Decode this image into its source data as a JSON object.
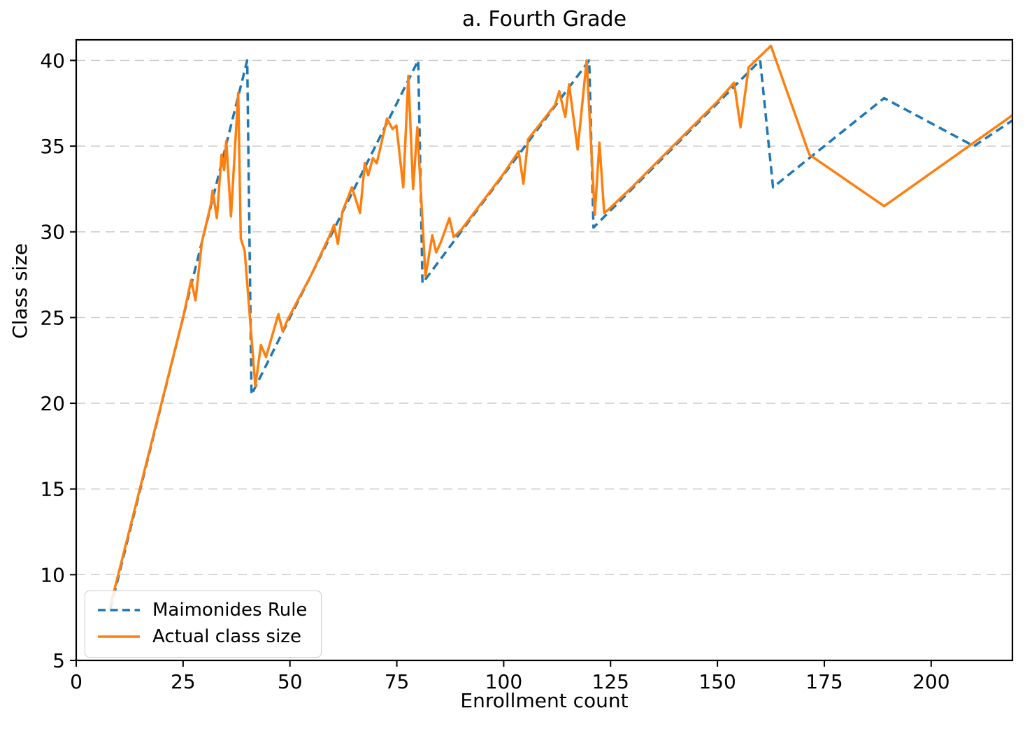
{
  "title": "a. Fourth Grade",
  "chart_data": {
    "type": "line",
    "title": "a. Fourth Grade",
    "xlabel": "Enrollment count",
    "ylabel": "Class size",
    "xlim": [
      0,
      219
    ],
    "ylim": [
      5,
      41.2
    ],
    "xticks": [
      0,
      25,
      50,
      75,
      100,
      125,
      150,
      175,
      200
    ],
    "yticks": [
      5,
      10,
      15,
      20,
      25,
      30,
      35,
      40
    ],
    "grid": "horizontal-dashed",
    "grid_color": "#c8c8c8",
    "legend_position": "lower left",
    "series": [
      {
        "name": "Maimonides Rule",
        "color": "#1f77b4",
        "style": "dashed",
        "points": [
          [
            8,
            8
          ],
          [
            40,
            40
          ],
          [
            41,
            20.5
          ],
          [
            80,
            40
          ],
          [
            81,
            27
          ],
          [
            120,
            40
          ],
          [
            121,
            30.25
          ],
          [
            160,
            40
          ],
          [
            163,
            32.6
          ],
          [
            189,
            37.8
          ],
          [
            210,
            35
          ],
          [
            219,
            36.5
          ]
        ]
      },
      {
        "name": "Actual class size",
        "color": "#ff7f0e",
        "style": "solid",
        "points": [
          [
            8,
            8.2
          ],
          [
            25,
            25
          ],
          [
            26.9,
            27.2
          ],
          [
            27.9,
            26.0
          ],
          [
            29.4,
            29.4
          ],
          [
            31.5,
            31.6
          ],
          [
            31.9,
            32.4
          ],
          [
            32.9,
            30.8
          ],
          [
            34.0,
            34.5
          ],
          [
            34.6,
            33.6
          ],
          [
            35.1,
            35.3
          ],
          [
            36.2,
            30.9
          ],
          [
            37.9,
            38.1
          ],
          [
            38.5,
            29.6
          ],
          [
            39.4,
            28.9
          ],
          [
            41.9,
            21.0
          ],
          [
            43.2,
            23.4
          ],
          [
            44.4,
            22.7
          ],
          [
            47.3,
            25.2
          ],
          [
            48.3,
            24.2
          ],
          [
            49.5,
            24.9
          ],
          [
            55,
            27.5
          ],
          [
            59.5,
            29.9
          ],
          [
            60.3,
            30.4
          ],
          [
            61.2,
            29.3
          ],
          [
            62.3,
            31.2
          ],
          [
            64.5,
            32.6
          ],
          [
            66.4,
            31.1
          ],
          [
            67.5,
            34.0
          ],
          [
            68.3,
            33.3
          ],
          [
            69.4,
            34.3
          ],
          [
            70.3,
            34.0
          ],
          [
            72.7,
            36.6
          ],
          [
            74.0,
            36.0
          ],
          [
            74.9,
            36.2
          ],
          [
            76.5,
            32.6
          ],
          [
            77.7,
            39.1
          ],
          [
            78.8,
            32.5
          ],
          [
            79.8,
            36.1
          ],
          [
            81.7,
            27.4
          ],
          [
            83.3,
            29.8
          ],
          [
            84.2,
            28.8
          ],
          [
            85.3,
            29.4
          ],
          [
            87.3,
            30.8
          ],
          [
            88.3,
            29.7
          ],
          [
            90,
            30.1
          ],
          [
            100,
            33.4
          ],
          [
            103.5,
            34.7
          ],
          [
            104.6,
            32.8
          ],
          [
            105.7,
            35.4
          ],
          [
            112,
            37.4
          ],
          [
            113,
            38.2
          ],
          [
            114.4,
            36.7
          ],
          [
            115.3,
            38.6
          ],
          [
            117.3,
            34.8
          ],
          [
            119.4,
            40.0
          ],
          [
            121.3,
            31.0
          ],
          [
            122.4,
            35.2
          ],
          [
            123.5,
            31.1
          ],
          [
            124.5,
            31.3
          ],
          [
            130,
            32.6
          ],
          [
            140,
            35.1
          ],
          [
            150,
            37.6
          ],
          [
            153.9,
            38.7
          ],
          [
            155.4,
            36.1
          ],
          [
            157.3,
            39.6
          ],
          [
            162.5,
            40.85
          ],
          [
            171.5,
            34.5
          ],
          [
            189,
            31.5
          ],
          [
            219,
            36.8
          ]
        ]
      }
    ]
  }
}
